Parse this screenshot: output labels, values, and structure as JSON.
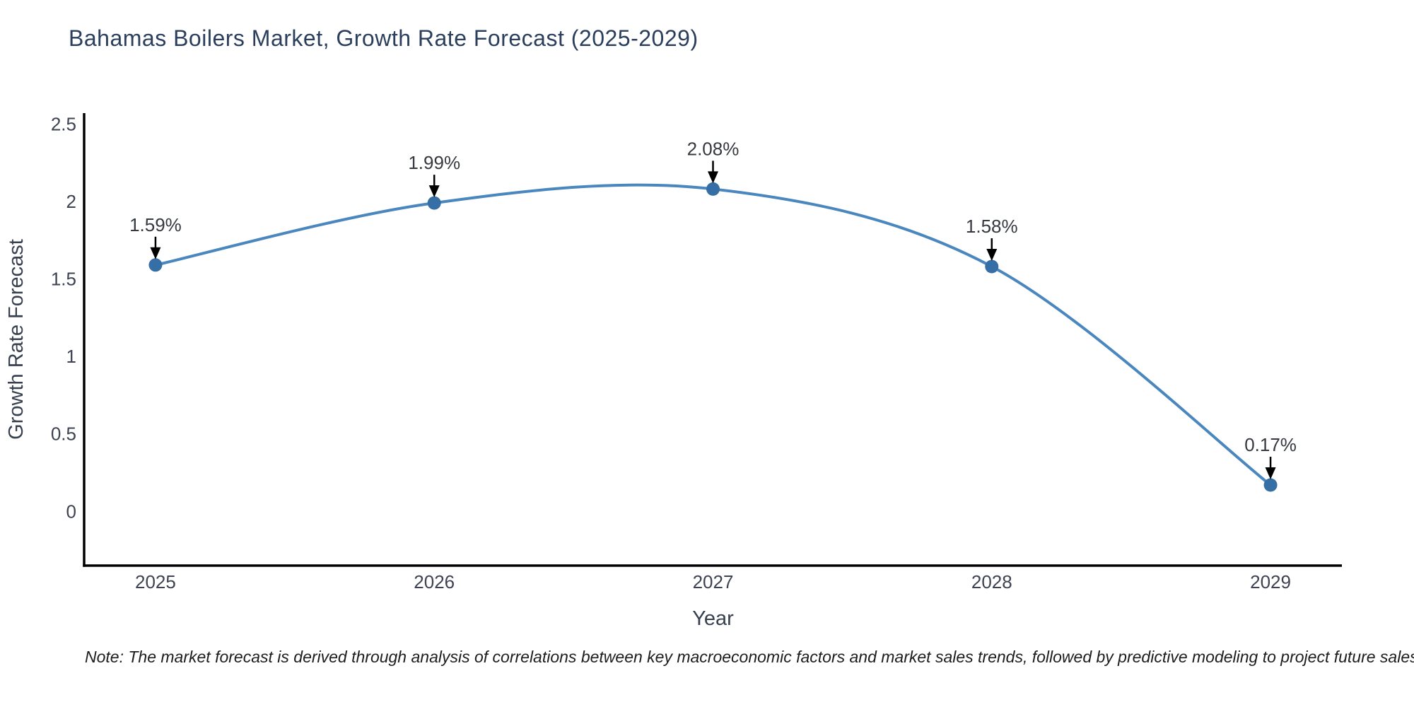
{
  "page": {
    "title": "Bahamas Boilers Market, Growth Rate Forecast (2025-2029)",
    "note": "Note: The market forecast is derived through analysis of correlations between key macroeconomic factors and market sales trends, followed by predictive modeling to project future sales"
  },
  "chart_data": {
    "type": "line",
    "line_shape": "spline",
    "title": "Bahamas Boilers Market, Growth Rate Forecast (2025-2029)",
    "xlabel": "Year",
    "ylabel": "Growth Rate Forecast",
    "categories": [
      "2025",
      "2026",
      "2027",
      "2028",
      "2029"
    ],
    "values": [
      1.59,
      1.99,
      2.08,
      1.58,
      0.17
    ],
    "point_labels": [
      "1.59%",
      "1.99%",
      "2.08%",
      "1.58%",
      "0.17%"
    ],
    "ytick_values": [
      0,
      0.5,
      1,
      1.5,
      2,
      2.5
    ],
    "ytick_labels": [
      "0",
      "0.5",
      "1",
      "1.5",
      "2",
      "2.5"
    ],
    "ylim": [
      -0.35,
      2.57
    ],
    "x_padding": 0.256,
    "grid": false,
    "legend": false,
    "colors": {
      "line": "#4a87be",
      "marker": "#366ea6",
      "axis": "#000000",
      "annotation_arrow": "#000000",
      "annotation_text": "#36393f",
      "tick_text": "#3d4351",
      "title_text": "#2b3f5c",
      "background": "#ffffff"
    }
  }
}
